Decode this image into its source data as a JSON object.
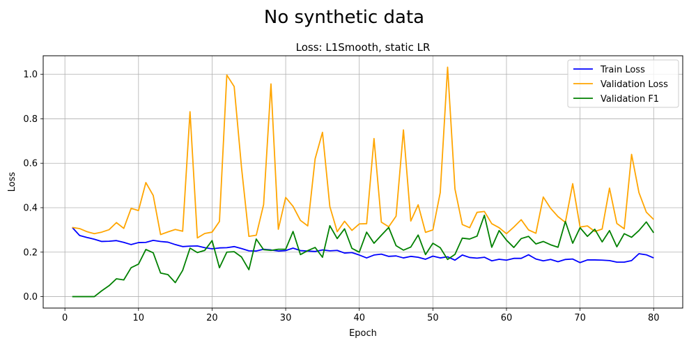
{
  "figure": {
    "suptitle": "No synthetic data"
  },
  "chart_data": {
    "type": "line",
    "title": "Loss: L1Smooth, static LR",
    "xlabel": "Epoch",
    "ylabel": "Loss",
    "xlim": [
      -2.95,
      83.95
    ],
    "ylim": [
      -0.0516,
      1.0836
    ],
    "xticks": [
      0,
      10,
      20,
      30,
      40,
      50,
      60,
      70,
      80
    ],
    "yticks": [
      0.0,
      0.2,
      0.4,
      0.6,
      0.8,
      1.0
    ],
    "ytick_labels": [
      "0.0",
      "0.2",
      "0.4",
      "0.6",
      "0.8",
      "1.0"
    ],
    "grid": true,
    "legend_position": "top-right",
    "x": [
      1,
      2,
      3,
      4,
      5,
      6,
      7,
      8,
      9,
      10,
      11,
      12,
      13,
      14,
      15,
      16,
      17,
      18,
      19,
      20,
      21,
      22,
      23,
      24,
      25,
      26,
      27,
      28,
      29,
      30,
      31,
      32,
      33,
      34,
      35,
      36,
      37,
      38,
      39,
      40,
      41,
      42,
      43,
      44,
      45,
      46,
      47,
      48,
      49,
      50,
      51,
      52,
      53,
      54,
      55,
      56,
      57,
      58,
      59,
      60,
      61,
      62,
      63,
      64,
      65,
      66,
      67,
      68,
      69,
      70,
      71,
      72,
      73,
      74,
      75,
      76,
      77,
      78,
      79,
      80
    ],
    "series": [
      {
        "name": "Train Loss",
        "color": "#0000ff",
        "values": [
          0.311,
          0.275,
          0.266,
          0.258,
          0.248,
          0.249,
          0.252,
          0.244,
          0.234,
          0.243,
          0.244,
          0.253,
          0.248,
          0.245,
          0.234,
          0.225,
          0.227,
          0.228,
          0.22,
          0.215,
          0.219,
          0.22,
          0.225,
          0.216,
          0.206,
          0.205,
          0.213,
          0.21,
          0.205,
          0.207,
          0.218,
          0.207,
          0.205,
          0.203,
          0.21,
          0.206,
          0.208,
          0.196,
          0.198,
          0.187,
          0.174,
          0.187,
          0.191,
          0.181,
          0.183,
          0.174,
          0.181,
          0.177,
          0.168,
          0.182,
          0.174,
          0.179,
          0.164,
          0.187,
          0.176,
          0.173,
          0.177,
          0.161,
          0.168,
          0.164,
          0.172,
          0.172,
          0.188,
          0.169,
          0.161,
          0.167,
          0.157,
          0.167,
          0.169,
          0.153,
          0.165,
          0.165,
          0.164,
          0.162,
          0.155,
          0.155,
          0.162,
          0.193,
          0.188,
          0.174
        ]
      },
      {
        "name": "Validation Loss",
        "color": "#ffa500",
        "values": [
          0.311,
          0.306,
          0.292,
          0.283,
          0.29,
          0.301,
          0.333,
          0.307,
          0.397,
          0.387,
          0.513,
          0.455,
          0.279,
          0.291,
          0.302,
          0.294,
          0.832,
          0.264,
          0.284,
          0.29,
          0.338,
          0.997,
          0.945,
          0.58,
          0.271,
          0.276,
          0.414,
          0.957,
          0.303,
          0.446,
          0.406,
          0.343,
          0.318,
          0.62,
          0.739,
          0.405,
          0.292,
          0.339,
          0.298,
          0.327,
          0.328,
          0.711,
          0.335,
          0.314,
          0.362,
          0.75,
          0.34,
          0.413,
          0.289,
          0.3,
          0.468,
          1.032,
          0.484,
          0.324,
          0.31,
          0.379,
          0.383,
          0.328,
          0.31,
          0.283,
          0.313,
          0.346,
          0.3,
          0.285,
          0.448,
          0.397,
          0.36,
          0.334,
          0.508,
          0.313,
          0.318,
          0.293,
          0.304,
          0.488,
          0.329,
          0.305,
          0.64,
          0.468,
          0.38,
          0.347
        ]
      },
      {
        "name": "Validation F1",
        "color": "#008000",
        "values": [
          0.0,
          0.0,
          0.0,
          0.0,
          0.026,
          0.049,
          0.08,
          0.075,
          0.13,
          0.146,
          0.212,
          0.197,
          0.106,
          0.099,
          0.063,
          0.118,
          0.218,
          0.198,
          0.208,
          0.252,
          0.13,
          0.2,
          0.202,
          0.178,
          0.121,
          0.259,
          0.211,
          0.208,
          0.213,
          0.213,
          0.293,
          0.189,
          0.207,
          0.221,
          0.177,
          0.319,
          0.261,
          0.305,
          0.217,
          0.2,
          0.29,
          0.24,
          0.276,
          0.311,
          0.229,
          0.209,
          0.223,
          0.277,
          0.189,
          0.24,
          0.22,
          0.167,
          0.19,
          0.263,
          0.259,
          0.272,
          0.366,
          0.222,
          0.297,
          0.254,
          0.221,
          0.261,
          0.271,
          0.237,
          0.248,
          0.233,
          0.222,
          0.338,
          0.24,
          0.31,
          0.271,
          0.303,
          0.246,
          0.297,
          0.224,
          0.283,
          0.267,
          0.297,
          0.336,
          0.287
        ]
      }
    ]
  }
}
